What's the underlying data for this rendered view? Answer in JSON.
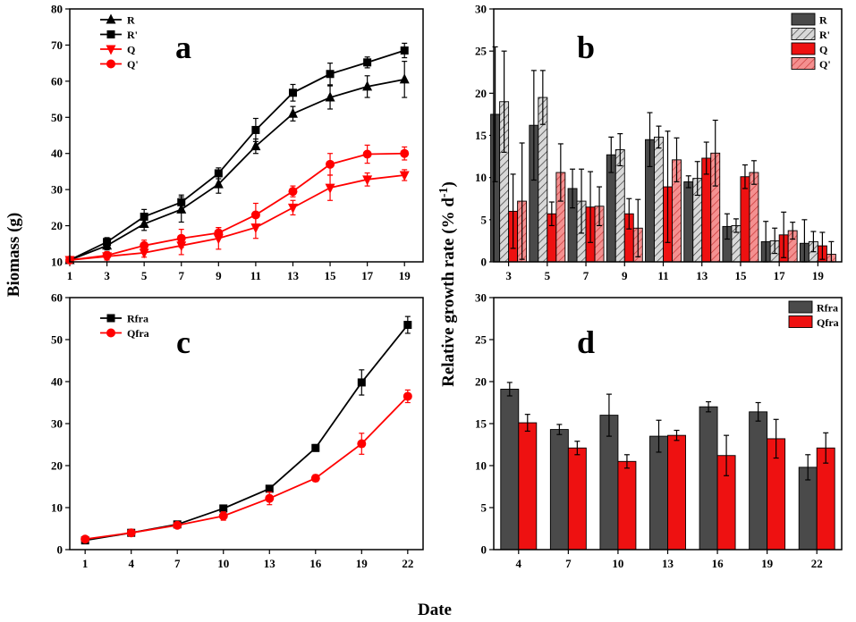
{
  "shared_labels": {
    "xlabel": "Date",
    "ylabel_left": "Biomass (g)",
    "ylabel_right_main": "Relative growth rate (% d",
    "ylabel_right_sup": "-1",
    "ylabel_right_tail": ")"
  },
  "chart_data": [
    {
      "panel": "a",
      "type": "line",
      "title": "",
      "xlabel": "Date",
      "ylabel": "Biomass (g)",
      "xlim": [
        1,
        20
      ],
      "ylim": [
        10,
        80
      ],
      "xticks": [
        1,
        3,
        5,
        7,
        9,
        11,
        13,
        15,
        17,
        19
      ],
      "yticks": [
        10,
        20,
        30,
        40,
        50,
        60,
        70,
        80
      ],
      "legend_position": "top-left",
      "x": [
        1,
        3,
        5,
        7,
        9,
        11,
        13,
        15,
        17,
        19
      ],
      "series": [
        {
          "name": "R",
          "color": "#000000",
          "marker": "triangle-up",
          "values": [
            10.5,
            14.5,
            20.5,
            24.5,
            31.5,
            42,
            51,
            55.5,
            58.5,
            60.5
          ],
          "errors": [
            0.5,
            1.2,
            1.8,
            3.5,
            2.5,
            2,
            2,
            3.2,
            3,
            5
          ]
        },
        {
          "name": "R'",
          "color": "#000000",
          "marker": "square",
          "values": [
            10.5,
            15.5,
            22.5,
            26.5,
            34.5,
            46.5,
            56.8,
            62,
            65.2,
            68.5
          ],
          "errors": [
            0.5,
            1.2,
            2,
            2,
            1.5,
            3.2,
            2.3,
            3,
            1.5,
            2
          ]
        },
        {
          "name": "Q",
          "color": "#ff0000",
          "marker": "triangle-down",
          "values": [
            10.5,
            11.5,
            12.5,
            14.5,
            16.5,
            19.5,
            25,
            30.5,
            32.8,
            34
          ],
          "errors": [
            0.5,
            1,
            1.2,
            2.5,
            3,
            3,
            2,
            3.5,
            1.8,
            1.5
          ]
        },
        {
          "name": "Q'",
          "color": "#ff0000",
          "marker": "circle",
          "values": [
            10.5,
            11.8,
            14.5,
            16.5,
            18,
            23,
            29.5,
            37,
            39.8,
            40
          ],
          "errors": [
            0.5,
            1,
            1.5,
            2.5,
            1.5,
            3.2,
            1.5,
            3,
            2.5,
            1.8
          ]
        }
      ]
    },
    {
      "panel": "b",
      "type": "bar",
      "title": "",
      "xlabel": "Date",
      "ylabel": "Relative growth rate (% d-1)",
      "ylim": [
        0,
        30
      ],
      "yticks": [
        0,
        5,
        10,
        15,
        20,
        25,
        30
      ],
      "categories": [
        "3",
        "5",
        "7",
        "9",
        "11",
        "13",
        "15",
        "17",
        "19"
      ],
      "legend_position": "top-right",
      "series": [
        {
          "name": "R",
          "color": "#4a4a4a",
          "pattern": "solid",
          "values": [
            17.5,
            16.2,
            8.7,
            12.7,
            14.5,
            9.5,
            4.2,
            2.4,
            2.2
          ],
          "errors": [
            8,
            6.5,
            2.3,
            2.1,
            3.2,
            0.7,
            1.5,
            2.4,
            2.8
          ]
        },
        {
          "name": "R'",
          "color": "#d8d8d8",
          "pattern": "hatched",
          "values": [
            19,
            19.5,
            7.2,
            13.3,
            14.8,
            9.9,
            4.3,
            2.5,
            2.4
          ],
          "errors": [
            6,
            3.2,
            3.8,
            1.9,
            1.3,
            2,
            0.8,
            1.5,
            1.2
          ]
        },
        {
          "name": "Q",
          "color": "#ee1111",
          "pattern": "solid",
          "values": [
            6,
            5.7,
            6.5,
            5.7,
            8.9,
            12.3,
            10.1,
            3.2,
            1.9
          ],
          "errors": [
            4.4,
            1.4,
            4.2,
            1.8,
            6.6,
            1.9,
            1.4,
            2.7,
            1.6
          ]
        },
        {
          "name": "Q'",
          "color": "#f49090",
          "pattern": "hatched",
          "values": [
            7.2,
            10.6,
            6.6,
            4,
            12.1,
            12.9,
            10.6,
            3.7,
            0.9
          ],
          "errors": [
            6.9,
            3.4,
            2.3,
            3.4,
            2.6,
            3.9,
            1.4,
            1,
            1.5
          ]
        }
      ]
    },
    {
      "panel": "c",
      "type": "line",
      "title": "",
      "xlabel": "Date",
      "ylabel": "Biomass (g)",
      "xlim": [
        0,
        23
      ],
      "ylim": [
        0,
        60
      ],
      "xticks": [
        1,
        4,
        7,
        10,
        13,
        16,
        19,
        22
      ],
      "yticks": [
        0,
        10,
        20,
        30,
        40,
        50,
        60
      ],
      "legend_position": "top-left",
      "x": [
        1,
        4,
        7,
        10,
        13,
        16,
        19,
        22
      ],
      "series": [
        {
          "name": "Rfra",
          "color": "#000000",
          "marker": "square",
          "values": [
            2.2,
            4,
            6,
            9.8,
            14.5,
            24.2,
            39.8,
            53.5
          ],
          "errors": [
            0.3,
            0.3,
            0.4,
            0.5,
            0.5,
            0.8,
            3,
            2
          ]
        },
        {
          "name": "Qfra",
          "color": "#ff0000",
          "marker": "circle",
          "values": [
            2.5,
            4,
            5.8,
            8,
            12.2,
            17,
            25.2,
            36.5
          ],
          "errors": [
            0.3,
            0.3,
            0.5,
            1,
            1.5,
            0.8,
            2.5,
            1.5
          ]
        }
      ]
    },
    {
      "panel": "d",
      "type": "bar",
      "title": "",
      "xlabel": "Date",
      "ylabel": "Relative growth rate (% d-1)",
      "ylim": [
        0,
        30
      ],
      "yticks": [
        0,
        5,
        10,
        15,
        20,
        25,
        30
      ],
      "categories": [
        "4",
        "7",
        "10",
        "13",
        "16",
        "19",
        "22"
      ],
      "legend_position": "top-right",
      "series": [
        {
          "name": "Rfra",
          "color": "#4a4a4a",
          "pattern": "solid",
          "values": [
            19.1,
            14.3,
            16,
            13.5,
            17,
            16.4,
            9.8
          ],
          "errors": [
            0.8,
            0.6,
            2.5,
            1.9,
            0.6,
            1.1,
            1.5
          ]
        },
        {
          "name": "Qfra",
          "color": "#ee1111",
          "pattern": "solid",
          "values": [
            15.1,
            12.1,
            10.5,
            13.6,
            11.2,
            13.2,
            12.1
          ],
          "errors": [
            1,
            0.8,
            0.8,
            0.6,
            2.4,
            2.3,
            1.8
          ]
        }
      ]
    }
  ]
}
